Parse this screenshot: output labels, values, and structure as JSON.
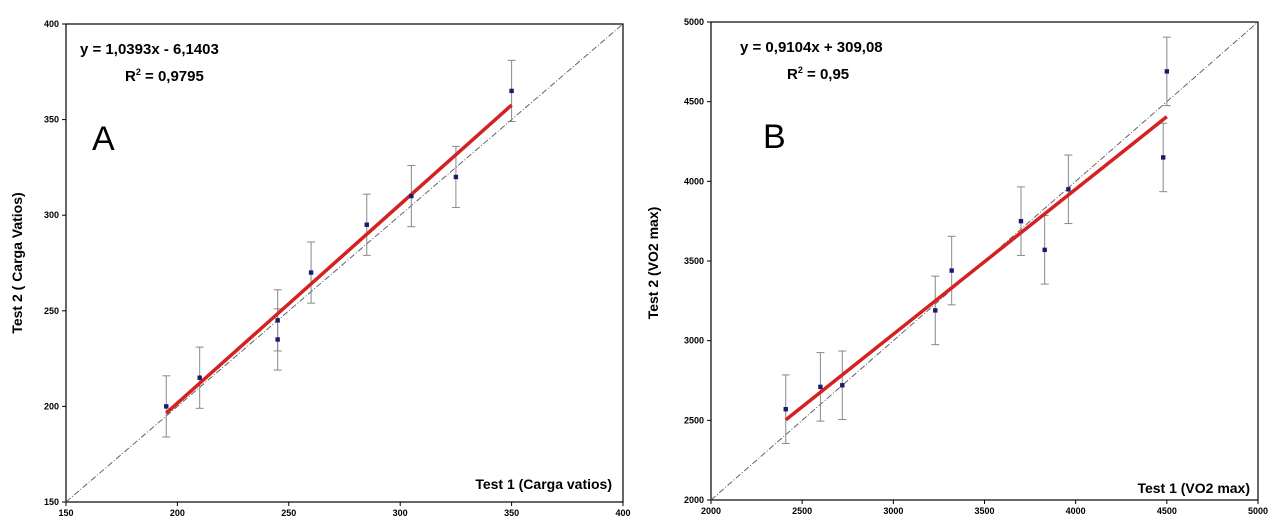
{
  "chart_data": [
    {
      "type": "scatter",
      "panel_label": "A",
      "xlabel": "Test 1 (Carga vatios)",
      "ylabel": "Test 2 ( Carga Vatios)",
      "xlim": [
        150,
        400
      ],
      "ylim": [
        150,
        400
      ],
      "xticks": [
        150,
        200,
        250,
        300,
        350,
        400
      ],
      "yticks": [
        150,
        200,
        250,
        300,
        350,
        400
      ],
      "equation": "y = 1,0393x - 6,1403",
      "r2_label": "R",
      "r2_value": " = 0,9795",
      "grid": false,
      "identity_line": true,
      "trendline": {
        "slope": 1.0393,
        "intercept": -6.1403,
        "x_range": [
          195,
          350
        ],
        "color": "#d42222"
      },
      "series": [
        {
          "points": [
            {
              "x": 195,
              "y": 200,
              "err": 16
            },
            {
              "x": 210,
              "y": 215,
              "err": 16
            },
            {
              "x": 245,
              "y": 245,
              "err": 16
            },
            {
              "x": 245,
              "y": 235,
              "err": 16
            },
            {
              "x": 260,
              "y": 270,
              "err": 16
            },
            {
              "x": 285,
              "y": 295,
              "err": 16
            },
            {
              "x": 305,
              "y": 310,
              "err": 16
            },
            {
              "x": 325,
              "y": 320,
              "err": 16
            },
            {
              "x": 350,
              "y": 365,
              "err": 16
            }
          ],
          "color": "#1a1a6e"
        }
      ]
    },
    {
      "type": "scatter",
      "panel_label": "B",
      "xlabel": "Test 1 (VO2 max)",
      "ylabel": "Test 2 (VO2 max)",
      "xlim": [
        2000,
        5000
      ],
      "ylim": [
        2000,
        5000
      ],
      "xticks": [
        2000,
        2500,
        3000,
        3500,
        4000,
        4500,
        5000
      ],
      "yticks": [
        2000,
        2500,
        3000,
        3500,
        4000,
        4500,
        5000
      ],
      "equation": "y = 0,9104x + 309,08",
      "r2_label": "R",
      "r2_value": " = 0,95",
      "grid": false,
      "identity_line": true,
      "trendline": {
        "slope": 0.9104,
        "intercept": 309.08,
        "x_range": [
          2410,
          4500
        ],
        "color": "#d42222"
      },
      "series": [
        {
          "points": [
            {
              "x": 2410,
              "y": 2570,
              "err": 215
            },
            {
              "x": 2600,
              "y": 2710,
              "err": 215
            },
            {
              "x": 2720,
              "y": 2720,
              "err": 215
            },
            {
              "x": 3230,
              "y": 3190,
              "err": 215
            },
            {
              "x": 3320,
              "y": 3440,
              "err": 215
            },
            {
              "x": 3700,
              "y": 3750,
              "err": 215
            },
            {
              "x": 3830,
              "y": 3570,
              "err": 215
            },
            {
              "x": 3960,
              "y": 3950,
              "err": 215
            },
            {
              "x": 4480,
              "y": 4150,
              "err": 215
            },
            {
              "x": 4500,
              "y": 4690,
              "err": 215
            }
          ],
          "color": "#1a1a6e"
        }
      ]
    }
  ]
}
